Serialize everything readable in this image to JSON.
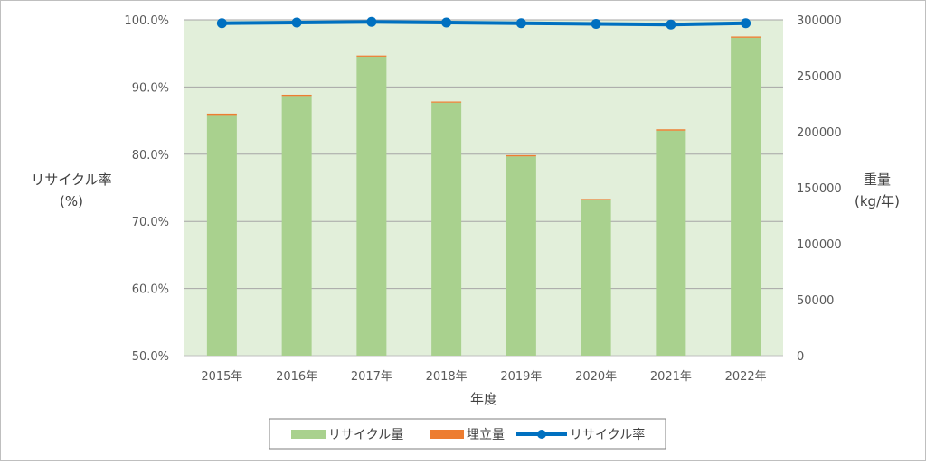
{
  "chart_data": {
    "type": "bar+line",
    "categories": [
      "2015年",
      "2016年",
      "2017年",
      "2018年",
      "2019年",
      "2020年",
      "2021年",
      "2022年"
    ],
    "series": [
      {
        "name": "リサイクル量",
        "axis": "right",
        "values": [
          215000,
          232000,
          267000,
          226000,
          178000,
          139000,
          201000,
          284000
        ]
      },
      {
        "name": "埋立量",
        "axis": "right",
        "values": [
          1200,
          1100,
          1000,
          1000,
          1100,
          1000,
          1200,
          1100
        ]
      },
      {
        "name": "リサイクル率",
        "axis": "left",
        "values": [
          99.5,
          99.6,
          99.7,
          99.6,
          99.5,
          99.4,
          99.3,
          99.5
        ]
      }
    ],
    "xlabel": "年度",
    "ylabel_left_line1": "リサイクル率",
    "ylabel_left_line2": "(%)",
    "ylabel_right_line1": "重量",
    "ylabel_right_line2": "(kg/年)",
    "ylim_left": [
      50,
      100
    ],
    "yticks_left": [
      "50.0%",
      "60.0%",
      "70.0%",
      "80.0%",
      "90.0%",
      "100.0%"
    ],
    "ylim_right": [
      0,
      300000
    ],
    "yticks_right": [
      "0",
      "50000",
      "100000",
      "150000",
      "200000",
      "250000",
      "300000"
    ],
    "grid": true,
    "legend_position": "bottom",
    "colors": {
      "plot_background": "#e2efda",
      "recycle_bar": "#a9d18e",
      "landfill_bar": "#ed7d31",
      "rate_line": "#0070c0",
      "gridline": "#a6a6a6"
    }
  }
}
